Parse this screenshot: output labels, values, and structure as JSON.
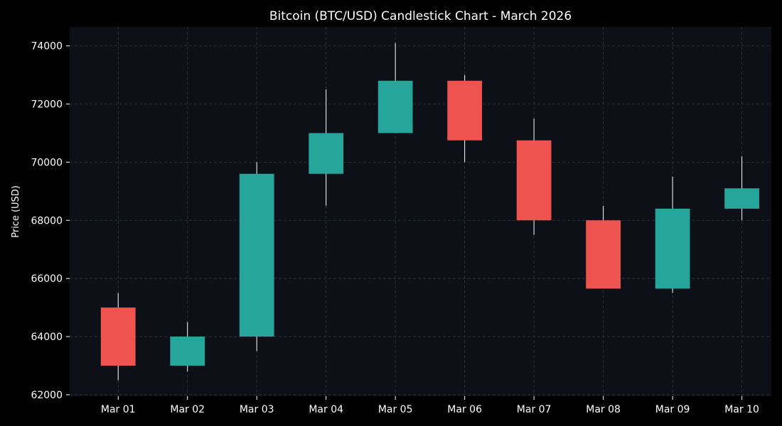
{
  "chart_data": {
    "type": "candlestick",
    "title": "Bitcoin (BTC/USD) Candlestick Chart - March 2026",
    "xlabel": "",
    "ylabel": "Price (USD)",
    "ylim": [
      61950,
      74650
    ],
    "yticks": [
      62000,
      64000,
      66000,
      68000,
      70000,
      72000,
      74000
    ],
    "grid": true,
    "categories": [
      "Mar 01",
      "Mar 02",
      "Mar 03",
      "Mar 04",
      "Mar 05",
      "Mar 06",
      "Mar 07",
      "Mar 08",
      "Mar 09",
      "Mar 10"
    ],
    "series": [
      {
        "open": [
          65000,
          63000,
          64000,
          69600,
          71000,
          72800,
          70750,
          68000,
          65650,
          68400
        ],
        "high": [
          65500,
          64500,
          70000,
          72500,
          74100,
          73000,
          71500,
          68500,
          69500,
          70200
        ],
        "low": [
          62500,
          62800,
          63500,
          68500,
          71000,
          70000,
          67500,
          65650,
          65500,
          68000
        ],
        "close": [
          63000,
          64000,
          69600,
          71000,
          72800,
          70750,
          68000,
          65650,
          68400,
          69100
        ]
      }
    ],
    "colors": {
      "background": "#000000",
      "plot_background": "#0d1117",
      "up": "#26a69a",
      "down": "#ef5350",
      "wick": "#ffffff",
      "grid": "#30363d",
      "text": "#ffffff"
    }
  }
}
